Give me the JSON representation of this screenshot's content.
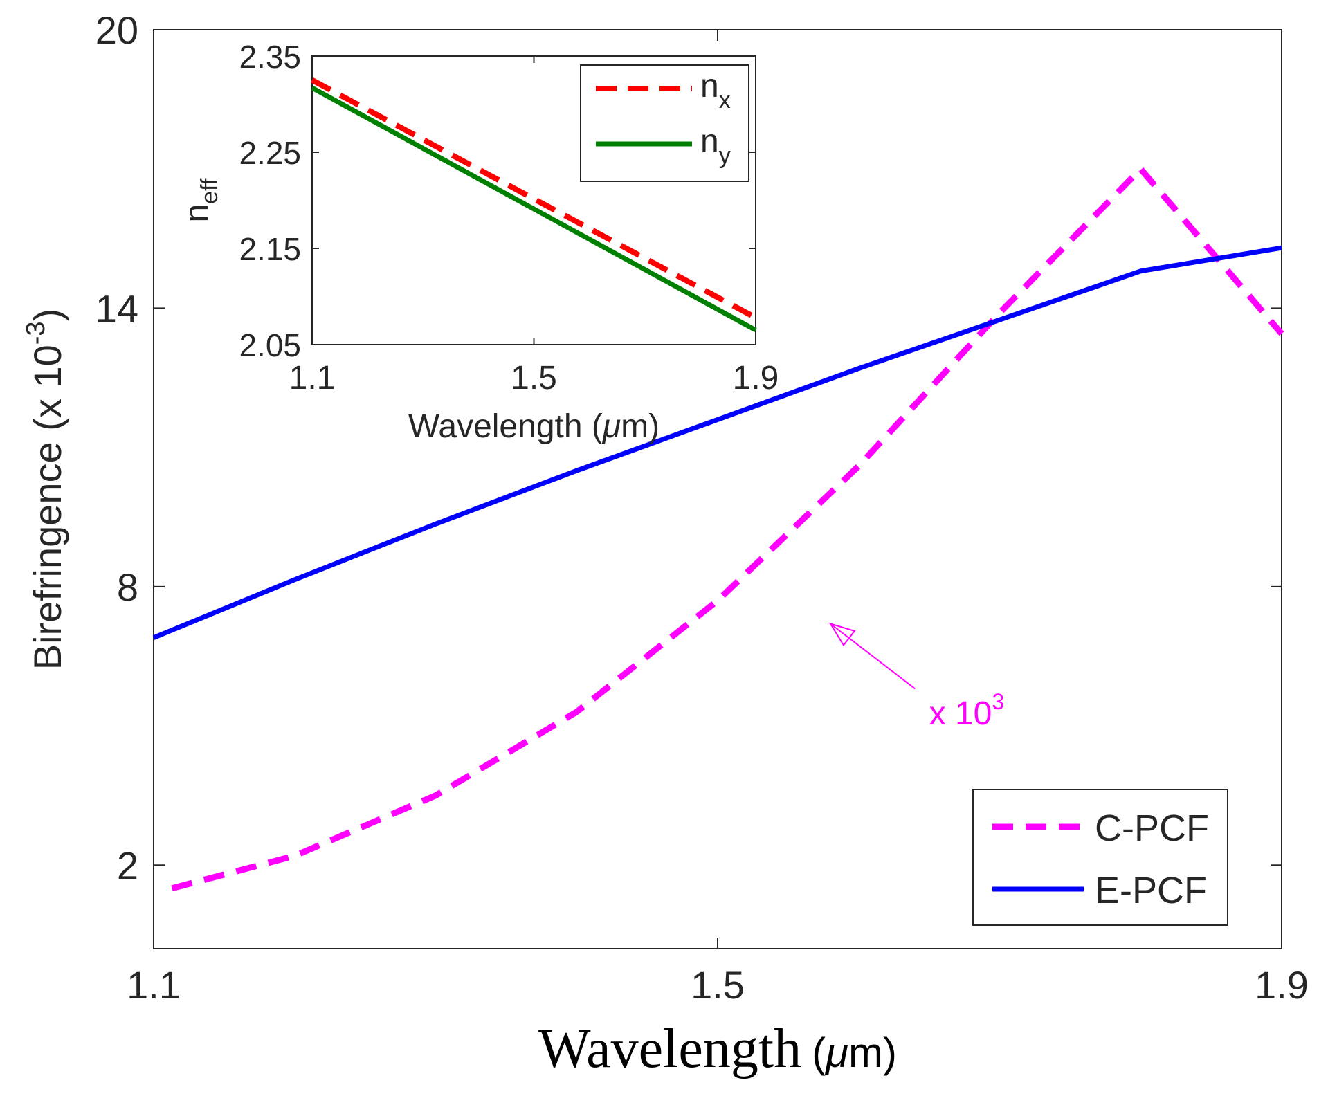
{
  "chart_data": [
    {
      "id": "main",
      "type": "line",
      "xlabel": "Wavelength (μm)",
      "xlabel_main": "Wavelength",
      "xlabel_unit_open": "(",
      "xlabel_unit_mu": "μ",
      "xlabel_unit_rest": "m)",
      "ylabel_text": "Birefringence (x 10",
      "ylabel_exp": "-3",
      "ylabel_close": ")",
      "xlim": [
        1.1,
        1.9
      ],
      "ylim": [
        0.2,
        20
      ],
      "xticks": [
        1.1,
        1.5,
        1.9
      ],
      "xtick_labels": [
        "1.1",
        "1.5",
        "1.9"
      ],
      "yticks": [
        2,
        8,
        14,
        20
      ],
      "ytick_labels": [
        "2",
        "8",
        "14",
        "20"
      ],
      "grid": false,
      "legend_position": "bottom-right",
      "series": [
        {
          "name": "C-PCF",
          "color": "#ff00ff",
          "style": "dashed",
          "x": [
            1.113,
            1.2,
            1.3,
            1.4,
            1.5,
            1.6,
            1.7,
            1.8,
            1.9
          ],
          "values": [
            1.5,
            2.2,
            3.5,
            5.3,
            7.7,
            10.6,
            13.9,
            17.0,
            13.45
          ]
        },
        {
          "name": "E-PCF",
          "color": "#0000ff",
          "style": "solid",
          "x": [
            1.1,
            1.2,
            1.3,
            1.4,
            1.5,
            1.6,
            1.7,
            1.8,
            1.9
          ],
          "values": [
            6.9,
            8.15,
            9.35,
            10.5,
            11.6,
            12.7,
            13.75,
            14.8,
            15.3
          ]
        }
      ],
      "annotation": {
        "text": "x 10",
        "exp": "3",
        "color": "#ff00ff",
        "arrow_to": [
          1.58,
          7.2
        ],
        "arrow_from": [
          1.64,
          5.8
        ],
        "text_at": [
          1.65,
          5.3
        ]
      }
    },
    {
      "id": "inset",
      "type": "line",
      "xlabel": "Wavelength (μm)",
      "xlabel_main": "Wavelength",
      "xlabel_unit_open": "(",
      "xlabel_unit_mu": "μ",
      "xlabel_unit_rest": "m)",
      "ylabel": "n",
      "ylabel_sub": "eff",
      "xlim": [
        1.1,
        1.9
      ],
      "ylim": [
        2.05,
        2.35
      ],
      "xticks": [
        1.1,
        1.5,
        1.9
      ],
      "xtick_labels": [
        "1.1",
        "1.5",
        "1.9"
      ],
      "yticks": [
        2.05,
        2.15,
        2.25,
        2.35
      ],
      "ytick_labels": [
        "2.05",
        "2.15",
        "2.25",
        "2.35"
      ],
      "grid": false,
      "legend_position": "top-right",
      "series": [
        {
          "name": "n",
          "sub": "x",
          "color": "#ff0000",
          "style": "dashed",
          "x": [
            1.1,
            1.9
          ],
          "values": [
            2.325,
            2.078
          ]
        },
        {
          "name": "n",
          "sub": "y",
          "color": "#008000",
          "style": "solid",
          "x": [
            1.1,
            1.9
          ],
          "values": [
            2.317,
            2.065
          ]
        }
      ]
    }
  ]
}
